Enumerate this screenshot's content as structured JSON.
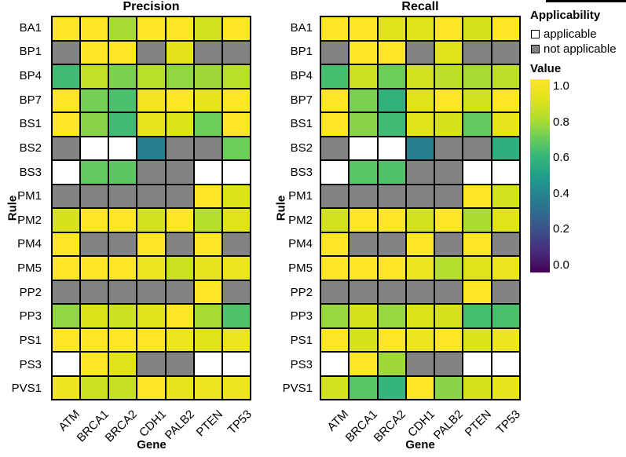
{
  "figure": {
    "panels": [
      "Precision",
      "Recall"
    ]
  },
  "colors": {
    "not_applicable": "#838383",
    "applicable": "#ffffff",
    "grid_line": "#000000",
    "colormap_top": "#fde725",
    "colormap_bottom": "#440154"
  },
  "legend": {
    "applicability": {
      "title": "Applicability",
      "items": [
        {
          "label": "applicable",
          "color": "#ffffff"
        },
        {
          "label": "not applicable",
          "color": "#838383"
        }
      ]
    },
    "value": {
      "title": "Value",
      "ticks": [
        "1.0",
        "0.8",
        "0.6",
        "0.4",
        "0.2",
        "0.0"
      ],
      "range": [
        0.0,
        1.0
      ],
      "colormap": "viridis"
    }
  },
  "chart_data": [
    {
      "type": "heatmap",
      "id": "precision",
      "title": "Precision",
      "xlabel": "Gene",
      "ylabel": "Rule",
      "columns": [
        "ATM",
        "BRCA1",
        "BRCA2",
        "CDH1",
        "PALB2",
        "PTEN",
        "TP53"
      ],
      "rows": [
        "BA1",
        "BP1",
        "BP4",
        "BP7",
        "BS1",
        "BS2",
        "BS3",
        "PM1",
        "PM2",
        "PM4",
        "PM5",
        "PP2",
        "PP3",
        "PS1",
        "PS3",
        "PVS1"
      ],
      "value_range": [
        0,
        1
      ],
      "na_encoding": "NA = not applicable (gray), null = applicable but blank (white)",
      "values": [
        [
          1.0,
          1.0,
          0.78,
          1.0,
          1.0,
          0.87,
          1.0
        ],
        [
          "NA",
          1.0,
          1.0,
          "NA",
          0.92,
          "NA",
          "NA"
        ],
        [
          0.62,
          0.83,
          0.72,
          0.81,
          0.75,
          0.77,
          0.81
        ],
        [
          1.0,
          0.71,
          0.64,
          0.96,
          1.0,
          0.93,
          1.0
        ],
        [
          1.0,
          0.74,
          0.62,
          0.93,
          0.89,
          0.7,
          1.0
        ],
        [
          "NA",
          null,
          null,
          0.38,
          "NA",
          "NA",
          0.7
        ],
        [
          null,
          0.68,
          0.67,
          "NA",
          "NA",
          null,
          null
        ],
        [
          "NA",
          "NA",
          "NA",
          "NA",
          "NA",
          1.0,
          0.89
        ],
        [
          0.88,
          1.0,
          1.0,
          0.87,
          1.0,
          0.8,
          0.9
        ],
        [
          1.0,
          "NA",
          "NA",
          1.0,
          "NA",
          1.0,
          "NA"
        ],
        [
          1.0,
          1.0,
          1.0,
          0.95,
          0.85,
          0.93,
          0.94
        ],
        [
          "NA",
          "NA",
          "NA",
          "NA",
          "NA",
          1.0,
          "NA"
        ],
        [
          0.75,
          0.89,
          0.86,
          0.91,
          1.0,
          0.78,
          0.65
        ],
        [
          1.0,
          1.0,
          1.0,
          1.0,
          0.94,
          0.9,
          0.94
        ],
        [
          null,
          1.0,
          0.9,
          "NA",
          "NA",
          null,
          null
        ],
        [
          0.95,
          0.86,
          0.84,
          1.0,
          0.93,
          0.94,
          0.95
        ]
      ]
    },
    {
      "type": "heatmap",
      "id": "recall",
      "title": "Recall",
      "xlabel": "Gene",
      "ylabel": "Rule",
      "columns": [
        "ATM",
        "BRCA1",
        "BRCA2",
        "CDH1",
        "PALB2",
        "PTEN",
        "TP53"
      ],
      "rows": [
        "BA1",
        "BP1",
        "BP4",
        "BP7",
        "BS1",
        "BS2",
        "BS3",
        "PM1",
        "PM2",
        "PM4",
        "PM5",
        "PP2",
        "PP3",
        "PS1",
        "PS3",
        "PVS1"
      ],
      "value_range": [
        0,
        1
      ],
      "na_encoding": "NA = not applicable (gray), null = applicable but blank (white)",
      "values": [
        [
          1.0,
          1.0,
          0.9,
          0.9,
          1.0,
          0.88,
          1.0
        ],
        [
          "NA",
          1.0,
          1.0,
          "NA",
          0.91,
          "NA",
          "NA"
        ],
        [
          0.63,
          0.86,
          0.7,
          0.87,
          0.82,
          0.78,
          0.82
        ],
        [
          1.0,
          0.72,
          0.58,
          0.9,
          1.0,
          0.87,
          1.0
        ],
        [
          1.0,
          0.74,
          0.62,
          0.91,
          0.88,
          0.68,
          0.93
        ],
        [
          "NA",
          null,
          null,
          0.38,
          "NA",
          "NA",
          0.57
        ],
        [
          null,
          0.66,
          0.65,
          "NA",
          "NA",
          null,
          null
        ],
        [
          "NA",
          "NA",
          "NA",
          "NA",
          "NA",
          1.0,
          0.87
        ],
        [
          0.87,
          1.0,
          1.0,
          0.87,
          1.0,
          0.79,
          0.9
        ],
        [
          1.0,
          "NA",
          "NA",
          1.0,
          "NA",
          1.0,
          "NA"
        ],
        [
          1.0,
          1.0,
          1.0,
          0.94,
          0.8,
          0.9,
          0.94
        ],
        [
          "NA",
          "NA",
          "NA",
          "NA",
          "NA",
          1.0,
          "NA"
        ],
        [
          0.76,
          0.88,
          0.76,
          0.89,
          0.88,
          0.63,
          0.64
        ],
        [
          1.0,
          0.88,
          1.0,
          0.95,
          1.0,
          0.89,
          0.95
        ],
        [
          null,
          1.0,
          0.77,
          "NA",
          "NA",
          null,
          null
        ],
        [
          0.87,
          0.66,
          0.59,
          1.0,
          0.74,
          0.88,
          0.93
        ]
      ]
    }
  ]
}
